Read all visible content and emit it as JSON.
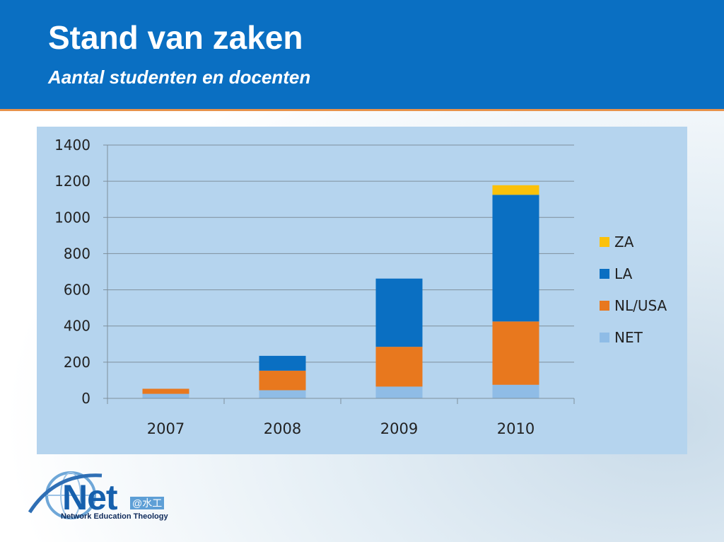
{
  "slide": {
    "title": "Stand van zaken",
    "subtitle": "Aantal studenten en docenten"
  },
  "logo": {
    "word": "Net",
    "tagline": "Network Education Theology",
    "marks": "@水工"
  },
  "colors": {
    "header": "#0a6fc2",
    "header_rule": "#e8924a",
    "chart_panel": "#b5d4ee",
    "ZA": "#fbc10a",
    "LA": "#0a6fc2",
    "NL/USA": "#e8781e",
    "NET": "#8fbce6"
  },
  "chart_data": {
    "type": "bar",
    "stacked": true,
    "categories": [
      "2007",
      "2008",
      "2009",
      "2010"
    ],
    "series": [
      {
        "name": "NET",
        "values": [
          25,
          45,
          65,
          75
        ],
        "color": "#8fbce6"
      },
      {
        "name": "NL/USA",
        "values": [
          28,
          108,
          220,
          350
        ],
        "color": "#e8781e"
      },
      {
        "name": "LA",
        "values": [
          0,
          82,
          377,
          700
        ],
        "color": "#0a6fc2"
      },
      {
        "name": "ZA",
        "values": [
          0,
          0,
          0,
          53
        ],
        "color": "#fbc10a"
      }
    ],
    "y_ticks": [
      0,
      200,
      400,
      600,
      800,
      1000,
      1200,
      1400
    ],
    "ylim": [
      0,
      1400
    ],
    "grid": true,
    "legend": {
      "placement": "right",
      "order": [
        "ZA",
        "LA",
        "NL/USA",
        "NET"
      ]
    }
  }
}
